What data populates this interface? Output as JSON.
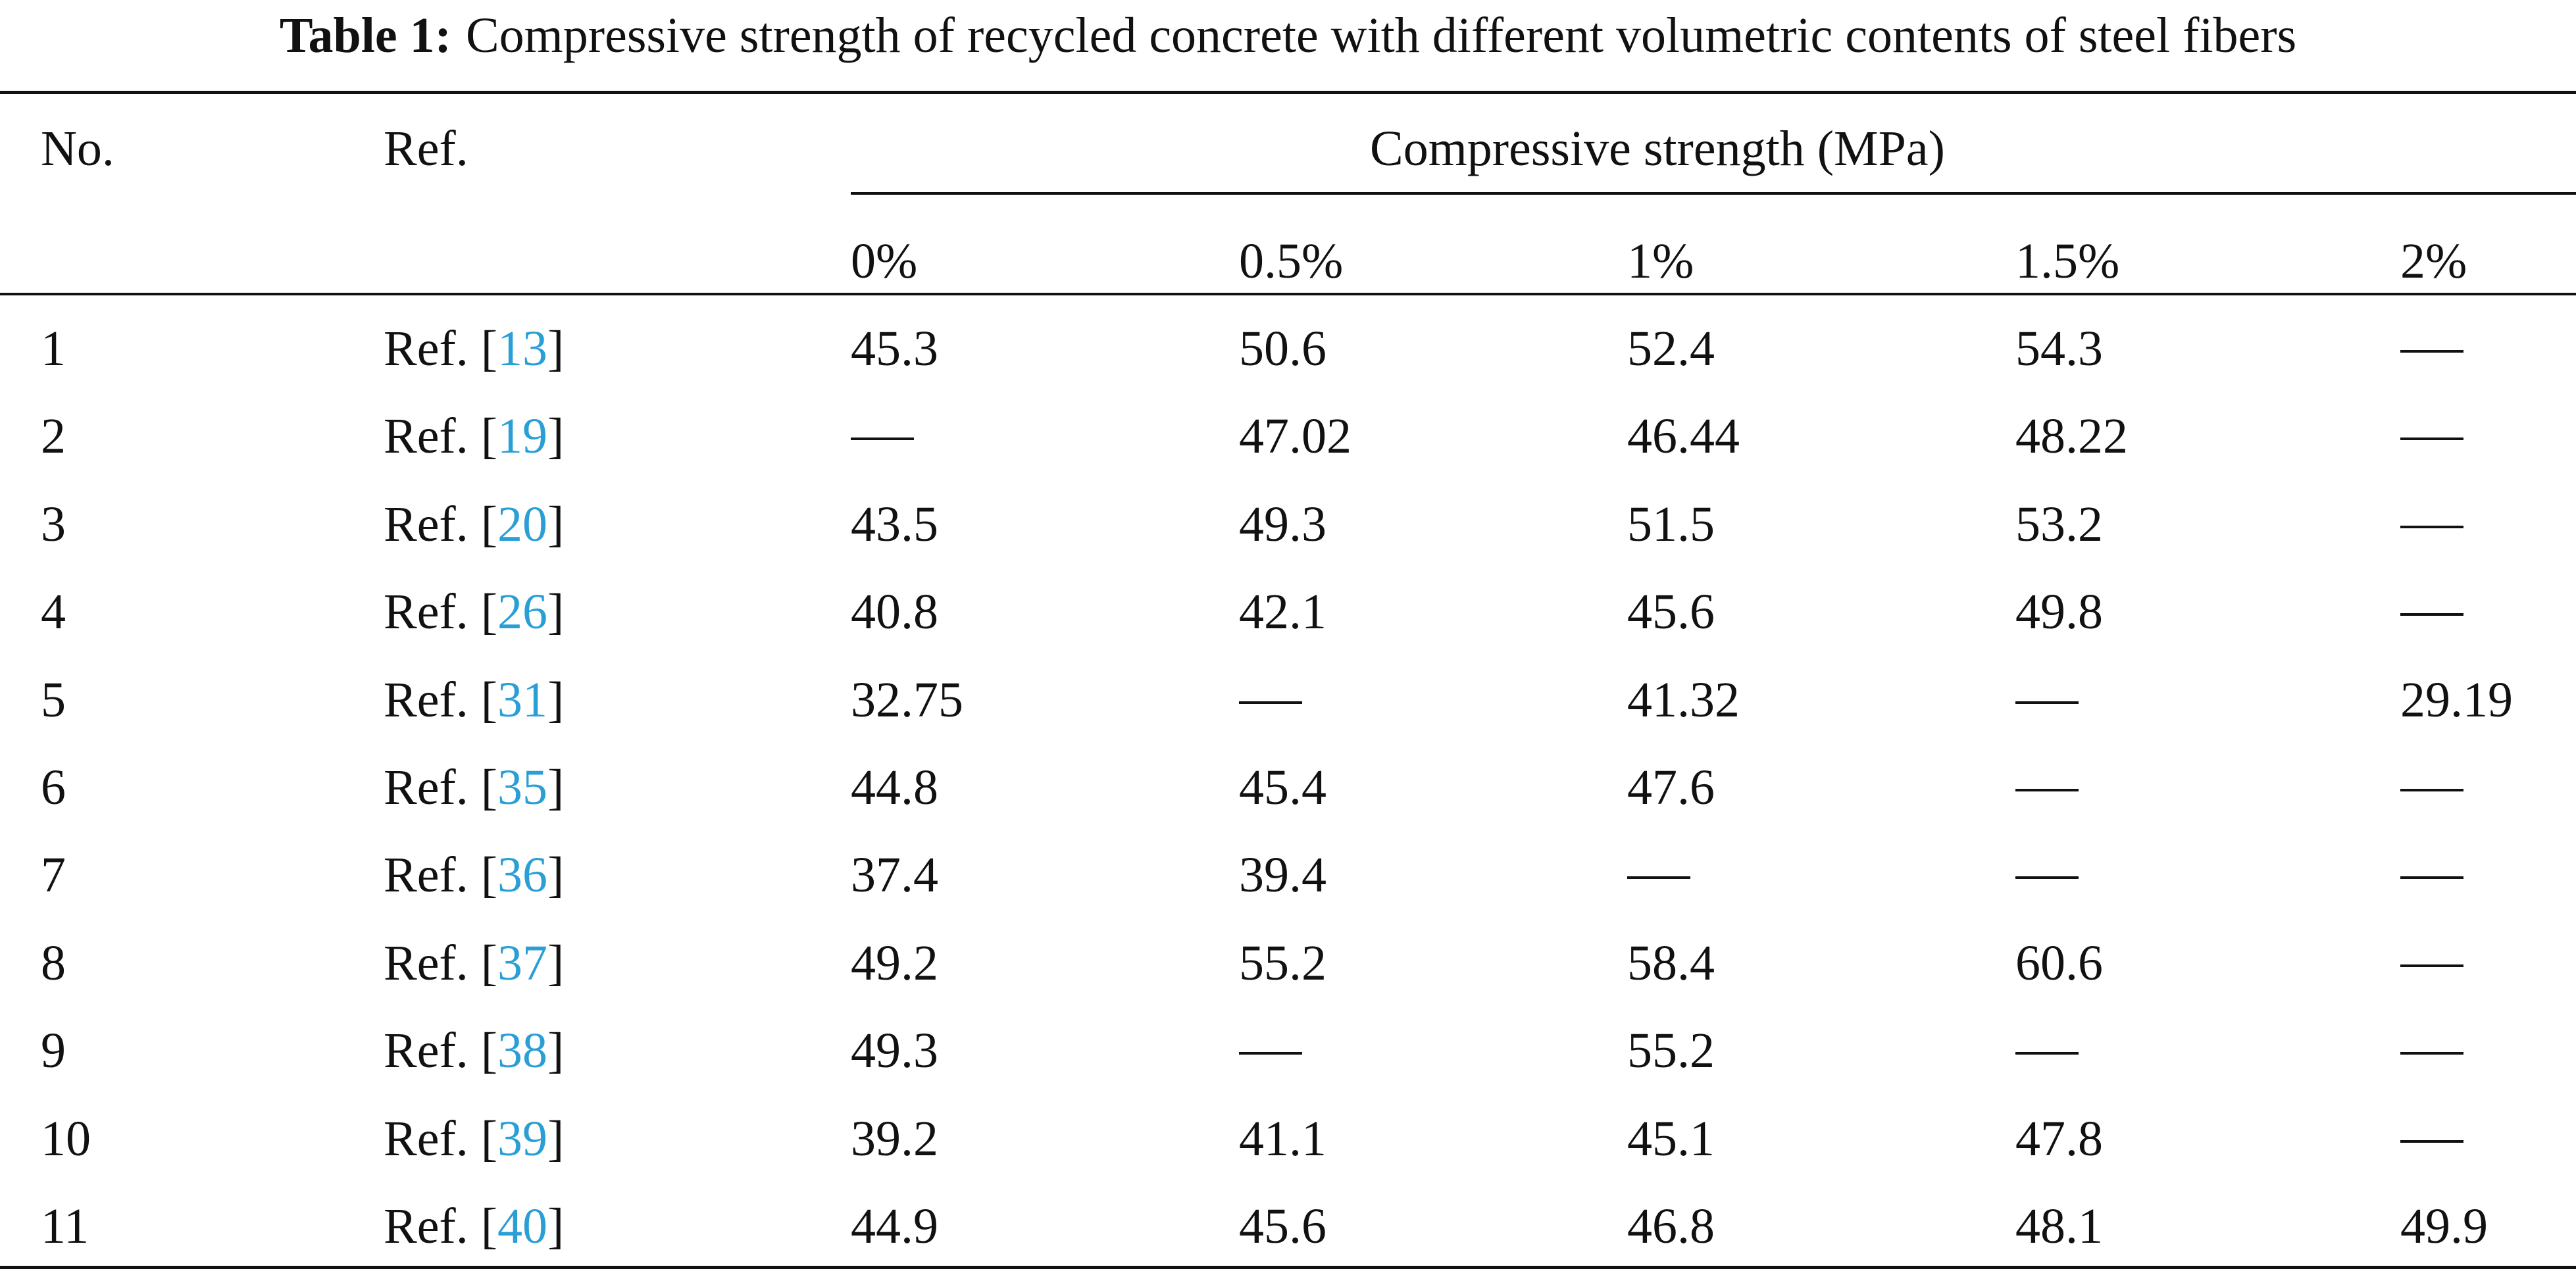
{
  "caption": {
    "label": "Table 1:",
    "text": "Compressive strength of recycled concrete with different volumetric contents of steel fibers"
  },
  "header": {
    "no": "No.",
    "ref": "Ref.",
    "group": "Compressive strength (MPa)",
    "columns": [
      "0%",
      "0.5%",
      "1%",
      "1.5%",
      "2%"
    ]
  },
  "ref_prefix": "Ref. [",
  "ref_suffix": "]",
  "rows": [
    {
      "no": "1",
      "ref": "13",
      "values": [
        "45.3",
        "50.6",
        "52.4",
        "54.3",
        "—"
      ]
    },
    {
      "no": "2",
      "ref": "19",
      "values": [
        "—",
        "47.02",
        "46.44",
        "48.22",
        "—"
      ]
    },
    {
      "no": "3",
      "ref": "20",
      "values": [
        "43.5",
        "49.3",
        "51.5",
        "53.2",
        "—"
      ]
    },
    {
      "no": "4",
      "ref": "26",
      "values": [
        "40.8",
        "42.1",
        "45.6",
        "49.8",
        "—"
      ]
    },
    {
      "no": "5",
      "ref": "31",
      "values": [
        "32.75",
        "—",
        "41.32",
        "—",
        "29.19"
      ]
    },
    {
      "no": "6",
      "ref": "35",
      "values": [
        "44.8",
        "45.4",
        "47.6",
        "—",
        "—"
      ]
    },
    {
      "no": "7",
      "ref": "36",
      "values": [
        "37.4",
        "39.4",
        "—",
        "—",
        "—"
      ]
    },
    {
      "no": "8",
      "ref": "37",
      "values": [
        "49.2",
        "55.2",
        "58.4",
        "60.6",
        "—"
      ]
    },
    {
      "no": "9",
      "ref": "38",
      "values": [
        "49.3",
        "—",
        "55.2",
        "—",
        "—"
      ]
    },
    {
      "no": "10",
      "ref": "39",
      "values": [
        "39.2",
        "41.1",
        "45.1",
        "47.8",
        "—"
      ]
    },
    {
      "no": "11",
      "ref": "40",
      "values": [
        "44.9",
        "45.6",
        "46.8",
        "48.1",
        "49.9"
      ]
    }
  ]
}
